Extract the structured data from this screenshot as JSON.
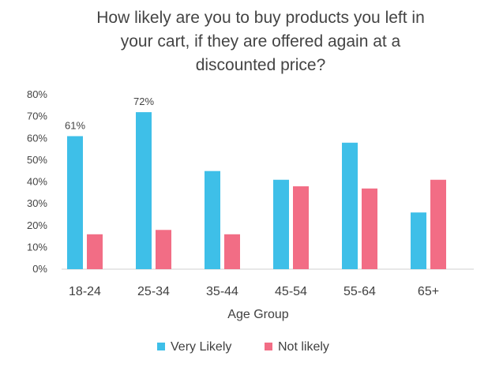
{
  "chart_data": {
    "type": "bar",
    "title_lines": [
      "How likely are you to buy products you left in",
      "your cart, if they are offered again at a",
      "discounted price?"
    ],
    "xlabel": "Age Group",
    "ylabel": "",
    "categories": [
      "18-24",
      "25-34",
      "35-44",
      "45-54",
      "55-64",
      "65+"
    ],
    "series": [
      {
        "name": "Very Likely",
        "color": "#3ebfe8",
        "values": [
          61,
          72,
          45,
          41,
          58,
          26
        ],
        "labels": [
          "61%",
          "72%",
          "",
          "",
          "",
          ""
        ]
      },
      {
        "name": "Not likely",
        "color": "#f26d85",
        "values": [
          16,
          18,
          16,
          38,
          37,
          41
        ],
        "labels": [
          "",
          "",
          "",
          "",
          "",
          ""
        ]
      }
    ],
    "ylim": [
      0,
      80
    ],
    "yticks": [
      "0%",
      "10%",
      "20%",
      "30%",
      "40%",
      "50%",
      "60%",
      "70%",
      "80%"
    ],
    "grid": false,
    "legend_position": "bottom"
  }
}
